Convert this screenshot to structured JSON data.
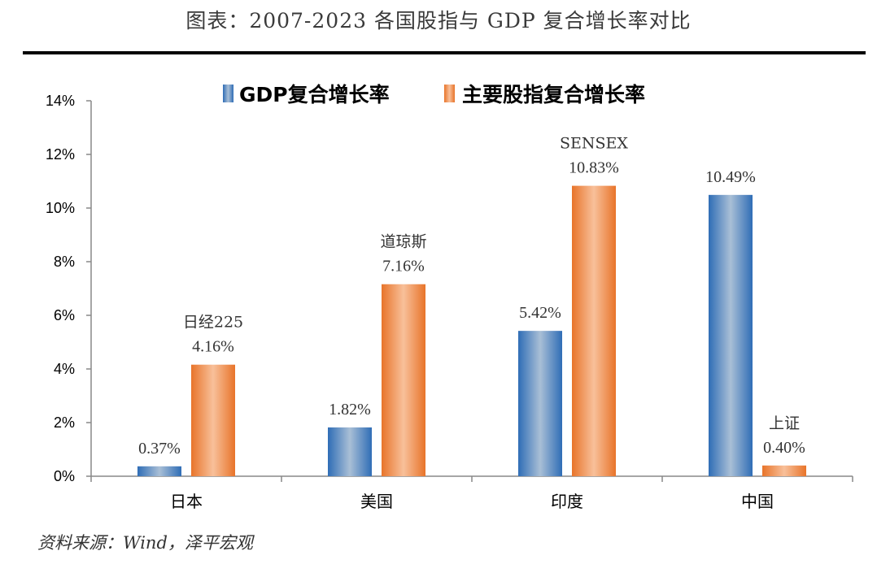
{
  "header": {
    "title": "图表：2007-2023 各国股指与 GDP 复合增长率对比"
  },
  "footer": {
    "source": "资料来源：Wind，泽平宏观"
  },
  "colors": {
    "gdp_edge": "#2f6db6",
    "gdp_center": "#a9bfd6",
    "index_edge": "#e8742a",
    "index_center": "#f8c09a"
  },
  "chart_data": {
    "type": "bar",
    "title": "",
    "xlabel": "",
    "ylabel": "",
    "ylim": [
      0,
      14
    ],
    "yticks": [
      "0%",
      "2%",
      "4%",
      "6%",
      "8%",
      "10%",
      "12%",
      "14%"
    ],
    "ytick_values": [
      0,
      2,
      4,
      6,
      8,
      10,
      12,
      14
    ],
    "grid": false,
    "legend_position": "top",
    "categories": [
      "日本",
      "美国",
      "印度",
      "中国"
    ],
    "series": [
      {
        "name": "GDP复合增长率",
        "values": [
          0.37,
          1.82,
          5.42,
          10.49
        ],
        "value_labels": [
          "0.37%",
          "1.82%",
          "5.42%",
          "10.49%"
        ]
      },
      {
        "name": "主要股指复合增长率",
        "values": [
          4.16,
          7.16,
          10.83,
          0.4
        ],
        "value_labels": [
          "4.16%",
          "7.16%",
          "10.83%",
          "0.40%"
        ],
        "index_names": [
          "日经225",
          "道琼斯",
          "SENSEX",
          "上证"
        ]
      }
    ]
  }
}
